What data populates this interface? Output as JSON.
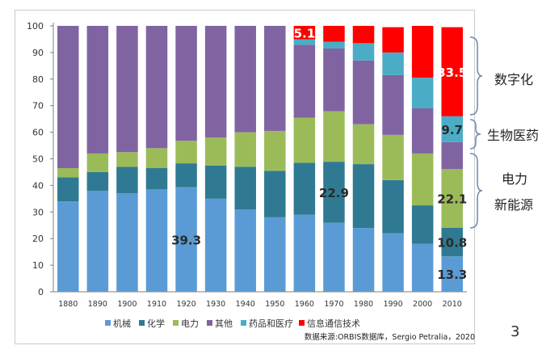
{
  "chart_data": {
    "type": "bar",
    "stacked": true,
    "categories": [
      "1880",
      "1890",
      "1900",
      "1910",
      "1920",
      "1930",
      "1940",
      "1950",
      "1960",
      "1970",
      "1980",
      "1990",
      "2000",
      "2010"
    ],
    "ylim": [
      0,
      100
    ],
    "yticks": [
      "0",
      "10",
      "20",
      "30",
      "40",
      "50",
      "60",
      "70",
      "80",
      "90",
      "100"
    ],
    "grid": false,
    "legend_position": "bottom",
    "series": [
      {
        "name": "机械",
        "color": "#5b9bd5",
        "values": [
          34,
          38,
          37,
          38.5,
          39.3,
          35,
          31,
          28,
          29,
          26,
          24,
          22,
          18,
          13.3
        ]
      },
      {
        "name": "化学",
        "color": "#2f7a92",
        "values": [
          9,
          7,
          10,
          8,
          9,
          12.5,
          16,
          17.5,
          19.5,
          22.9,
          24,
          20,
          14.5,
          10.8
        ]
      },
      {
        "name": "电力",
        "color": "#9bbb59",
        "values": [
          3.5,
          7,
          5.5,
          7.5,
          8.5,
          10.5,
          13,
          15,
          17,
          19,
          15,
          17,
          19.5,
          22.1
        ]
      },
      {
        "name": "其他",
        "color": "#8064a2",
        "values": [
          53.5,
          48,
          47.5,
          46,
          43.2,
          42,
          40,
          39.5,
          27.4,
          23.6,
          24,
          22.5,
          17,
          10.1
        ]
      },
      {
        "name": "药品和医疗",
        "color": "#4bacc6",
        "values": [
          0,
          0,
          0,
          0,
          0,
          0,
          0,
          0,
          2,
          2.5,
          6.5,
          8.5,
          11.5,
          9.7
        ]
      },
      {
        "name": "信息通信技术",
        "color": "#ff0000",
        "values": [
          0,
          0,
          0,
          0,
          0,
          0,
          0,
          0,
          5.1,
          6,
          6.5,
          9.5,
          19.5,
          33.5
        ]
      }
    ],
    "data_labels": [
      {
        "category": "1920",
        "series": "机械",
        "text": "39.3"
      },
      {
        "category": "1970",
        "series": "化学",
        "text": "22.9"
      },
      {
        "category": "1960",
        "series": "信息通信技术",
        "text": "5.1"
      },
      {
        "category": "2010",
        "series": "机械",
        "text": "13.3"
      },
      {
        "category": "2010",
        "series": "化学",
        "text": "10.8"
      },
      {
        "category": "2010",
        "series": "电力",
        "text": "22.1"
      },
      {
        "category": "2010",
        "series": "药品和医疗",
        "text": "9.7"
      },
      {
        "category": "2010",
        "series": "信息通信技术",
        "text": "33.5"
      }
    ],
    "source_note": "数据来源:ORBIS数据库，Sergio Petralia，2020"
  },
  "annotations": {
    "digital": "数字化",
    "biomed": "生物医药",
    "power": "电力",
    "new_energy": "新能源"
  },
  "page_number": "3"
}
